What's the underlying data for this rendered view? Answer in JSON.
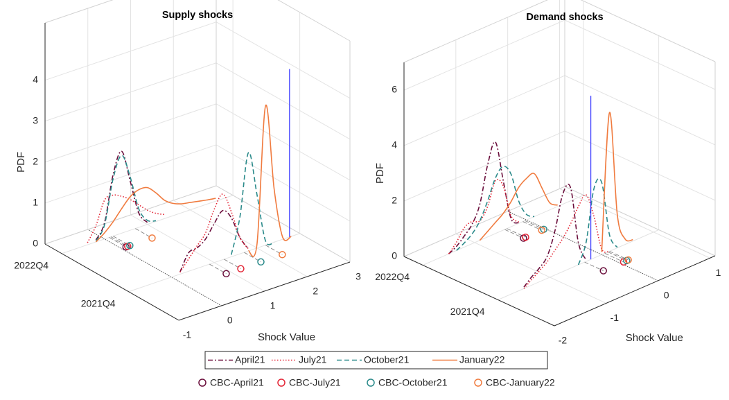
{
  "legend": {
    "lines": [
      {
        "name": "April21",
        "color": "#6a0d3b",
        "style": "dashdot"
      },
      {
        "name": "July21",
        "color": "#e32636",
        "style": "dotted"
      },
      {
        "name": "October21",
        "color": "#2a8a8a",
        "style": "dashed"
      },
      {
        "name": "January22",
        "color": "#f07b3f",
        "style": "solid"
      }
    ],
    "markers": [
      {
        "name": "CBC-April21",
        "color": "#6a0d3b"
      },
      {
        "name": "CBC-July21",
        "color": "#e32636"
      },
      {
        "name": "CBC-October21",
        "color": "#2a8a8a"
      },
      {
        "name": "CBC-January22",
        "color": "#f07b3f"
      }
    ]
  },
  "chart_data": [
    {
      "type": "line3d",
      "title": "Supply shocks",
      "xlabel": "Shock Value",
      "zlabel": "PDF",
      "xlim": [
        -1,
        3
      ],
      "xticks": [
        -1,
        0,
        1,
        2,
        3
      ],
      "dlim": [
        2021,
        2023
      ],
      "dticks": [
        {
          "value": 2021.75,
          "label": "2021Q4"
        },
        {
          "value": 2022.75,
          "label": "2022Q4"
        }
      ],
      "zlim": [
        0,
        5.4
      ],
      "zticks": [
        0,
        1,
        2,
        3,
        4
      ],
      "grid": true,
      "x": [
        -0.4,
        -0.2,
        0,
        0.2,
        0.4,
        0.6,
        0.8,
        1.0,
        1.2,
        1.4,
        1.6,
        1.8,
        2.0,
        2.2,
        2.4,
        2.6,
        2.8
      ],
      "series": [
        {
          "values": [
            [
              null,
              null,
              null,
              0.05,
              0.45,
              0.5,
              0.65,
              0.95,
              1.2,
              0.95,
              0.4,
              0.05,
              null,
              null,
              null,
              null,
              null
            ],
            [
              null,
              0.05,
              0.4,
              1.5,
              2.0,
              1.2,
              0.35,
              0.05,
              null,
              null,
              null,
              null,
              null,
              null,
              null,
              null,
              null
            ]
          ]
        },
        {
          "values": [
            [
              null,
              null,
              null,
              0.05,
              0.3,
              0.55,
              0.8,
              1.3,
              1.6,
              1.1,
              0.4,
              0.05,
              null,
              null,
              null,
              null,
              null
            ],
            [
              0.05,
              0.4,
              0.95,
              1.0,
              0.9,
              0.75,
              0.55,
              0.35,
              0.2,
              0.1,
              null,
              null,
              null,
              null,
              null,
              null,
              null
            ]
          ]
        },
        {
          "values": [
            [
              null,
              null,
              null,
              null,
              null,
              null,
              null,
              null,
              null,
              0.05,
              0.9,
              2.4,
              1.3,
              0.1,
              0,
              null,
              null
            ],
            [
              null,
              0.02,
              0.35,
              1.4,
              1.9,
              1.3,
              0.45,
              0.1,
              0.02,
              null,
              null,
              null,
              null,
              null,
              null,
              null,
              null
            ]
          ]
        },
        {
          "values": [
            [
              null,
              null,
              null,
              null,
              null,
              null,
              null,
              null,
              null,
              null,
              null,
              0,
              0.1,
              3.4,
              1.3,
              0.05,
              0
            ],
            [
              null,
              0,
              0.15,
              0.35,
              0.6,
              0.82,
              0.92,
              0.9,
              0.7,
              0.45,
              0.3,
              0.22,
              0.18,
              0.14,
              0.1,
              0.07,
              null
            ]
          ]
        }
      ],
      "cbc_depth": [
        2021.5,
        2022.5
      ],
      "cbc": [
        {
          "x": [
            0.89,
            0.11
          ]
        },
        {
          "x": [
            1.23,
            0.15
          ]
        },
        {
          "x": [
            1.7,
            0.2
          ]
        },
        {
          "x": [
            2.2,
            0.72
          ]
        }
      ],
      "ref_line_x": 0,
      "vline": {
        "x": 2.76,
        "depth": 2021.75,
        "z": 4.1,
        "color": "#4040ff"
      }
    },
    {
      "type": "line3d",
      "title": "Demand shocks",
      "xlabel": "Shock Value",
      "zlabel": "PDF",
      "xlim": [
        -2,
        1.1
      ],
      "xticks": [
        -2,
        -1,
        0,
        1
      ],
      "dlim": [
        2021,
        2023
      ],
      "dticks": [
        {
          "value": 2021.75,
          "label": "2021Q4"
        },
        {
          "value": 2022.75,
          "label": "2022Q4"
        }
      ],
      "zlim": [
        0,
        7
      ],
      "zticks": [
        0,
        2,
        4,
        6
      ],
      "grid": true,
      "x": [
        -1.5,
        -1.35,
        -1.2,
        -1.05,
        -0.9,
        -0.75,
        -0.6,
        -0.45,
        -0.3,
        -0.15,
        0,
        0.15,
        0.3,
        0.45,
        0.6
      ],
      "series": [
        {
          "values": [
            [
              0.05,
              0.3,
              0.5,
              0.8,
              1.6,
              2.8,
              2.9,
              0.8,
              0.05,
              null,
              null,
              null,
              null,
              null,
              null
            ],
            [
              0,
              0.15,
              0.4,
              0.7,
              1.3,
              2.6,
              3.3,
              1.8,
              0.3,
              0.02,
              null,
              null,
              null,
              null,
              null
            ]
          ]
        },
        {
          "values": [
            [
              0,
              0.2,
              0.4,
              0.6,
              0.9,
              1.2,
              1.6,
              2.1,
              2.4,
              1.5,
              0.2,
              0,
              null,
              null,
              null
            ],
            [
              0,
              0.3,
              0.7,
              0.8,
              0.7,
              1.1,
              1.9,
              1.6,
              0.4,
              0.05,
              null,
              null,
              null,
              null,
              null
            ]
          ]
        },
        {
          "values": [
            [
              null,
              null,
              null,
              null,
              null,
              null,
              null,
              0,
              0.7,
              2.5,
              2.6,
              0.6,
              0.02,
              null,
              null
            ],
            [
              null,
              0,
              0.15,
              0.35,
              0.7,
              1.3,
              2.0,
              2.3,
              1.9,
              0.8,
              0.2,
              0,
              null,
              null,
              null
            ]
          ]
        },
        {
          "values": [
            [
              null,
              null,
              null,
              null,
              null,
              null,
              null,
              null,
              null,
              null,
              0.1,
              5.0,
              1.2,
              0.2,
              0.05
            ],
            [
              null,
              null,
              null,
              null,
              0,
              0.2,
              0.4,
              0.6,
              0.9,
              1.3,
              1.5,
              1.55,
              0.9,
              0.25,
              0.05
            ]
          ]
        }
      ],
      "cbc_depth": [
        2021.5,
        2022.5
      ],
      "cbc": [
        {
          "x": [
            -0.33,
            -0.42
          ]
        },
        {
          "x": [
            0.06,
            -0.38
          ]
        },
        {
          "x": [
            0.12,
            -0.03
          ]
        },
        {
          "x": [
            0.15,
            -0.07
          ]
        }
      ],
      "ref_line_x": 0,
      "vline": {
        "x": -0.21,
        "depth": 2021.75,
        "z": 5.9,
        "color": "#4040ff"
      }
    }
  ]
}
